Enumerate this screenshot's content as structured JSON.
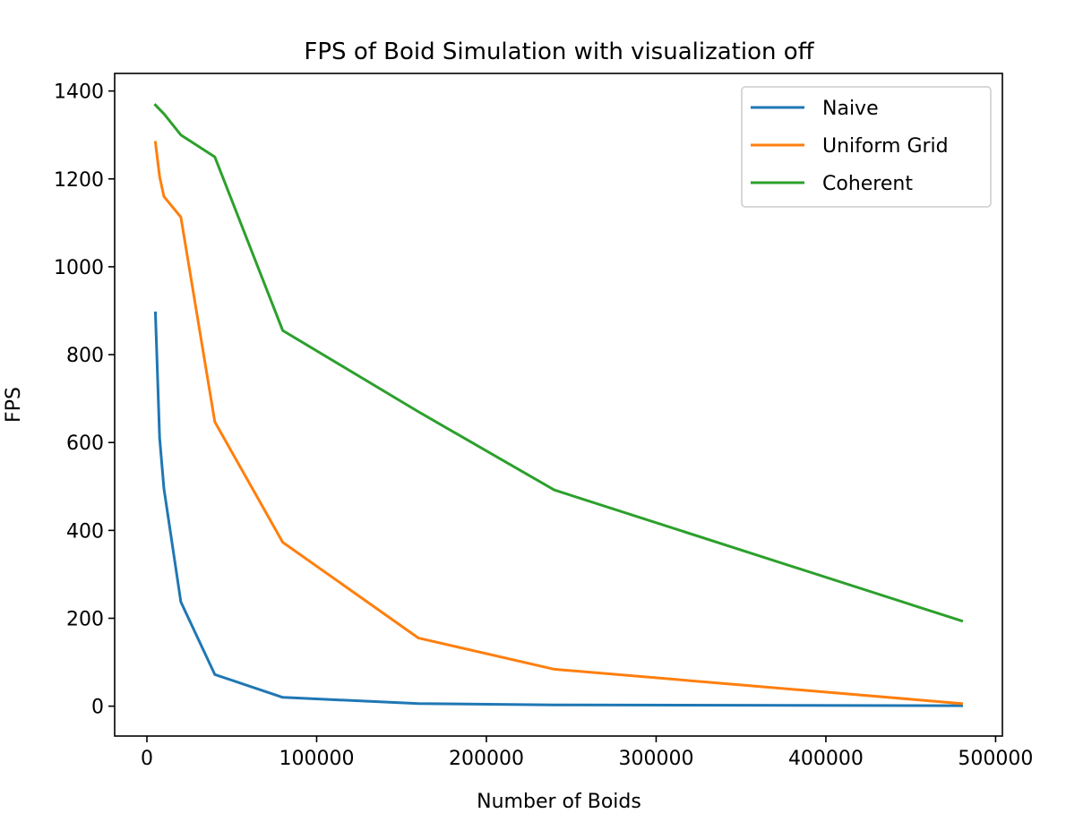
{
  "chart_data": {
    "type": "line",
    "title": "FPS of Boid Simulation with visualization off",
    "xlabel": "Number of Boids",
    "ylabel": "FPS",
    "xlim": [
      -19000,
      504000
    ],
    "ylim": [
      -68,
      1440
    ],
    "xticks": [
      0,
      100000,
      200000,
      300000,
      400000,
      500000
    ],
    "xtick_labels": [
      "0",
      "100000",
      "200000",
      "300000",
      "400000",
      "500000"
    ],
    "yticks": [
      0,
      200,
      400,
      600,
      800,
      1000,
      1200,
      1400
    ],
    "ytick_labels": [
      "0",
      "200",
      "400",
      "600",
      "800",
      "1000",
      "1200",
      "1400"
    ],
    "grid": false,
    "legend_position": "top-right",
    "x": [
      5000,
      7500,
      10000,
      20000,
      40000,
      80000,
      160000,
      240000,
      480000
    ],
    "series": [
      {
        "name": "Naive",
        "color": "#1f77b4",
        "values": [
          895,
          610,
          495,
          237,
          72,
          20,
          6,
          3,
          1
        ]
      },
      {
        "name": "Uniform Grid",
        "color": "#ff7f0e",
        "values": [
          1283,
          1205,
          1160,
          1113,
          647,
          373,
          155,
          84,
          6
        ]
      },
      {
        "name": "Coherent",
        "color": "#2ca02c",
        "values": [
          1368,
          1358,
          1348,
          1300,
          1250,
          855,
          670,
          492,
          194
        ]
      }
    ]
  }
}
